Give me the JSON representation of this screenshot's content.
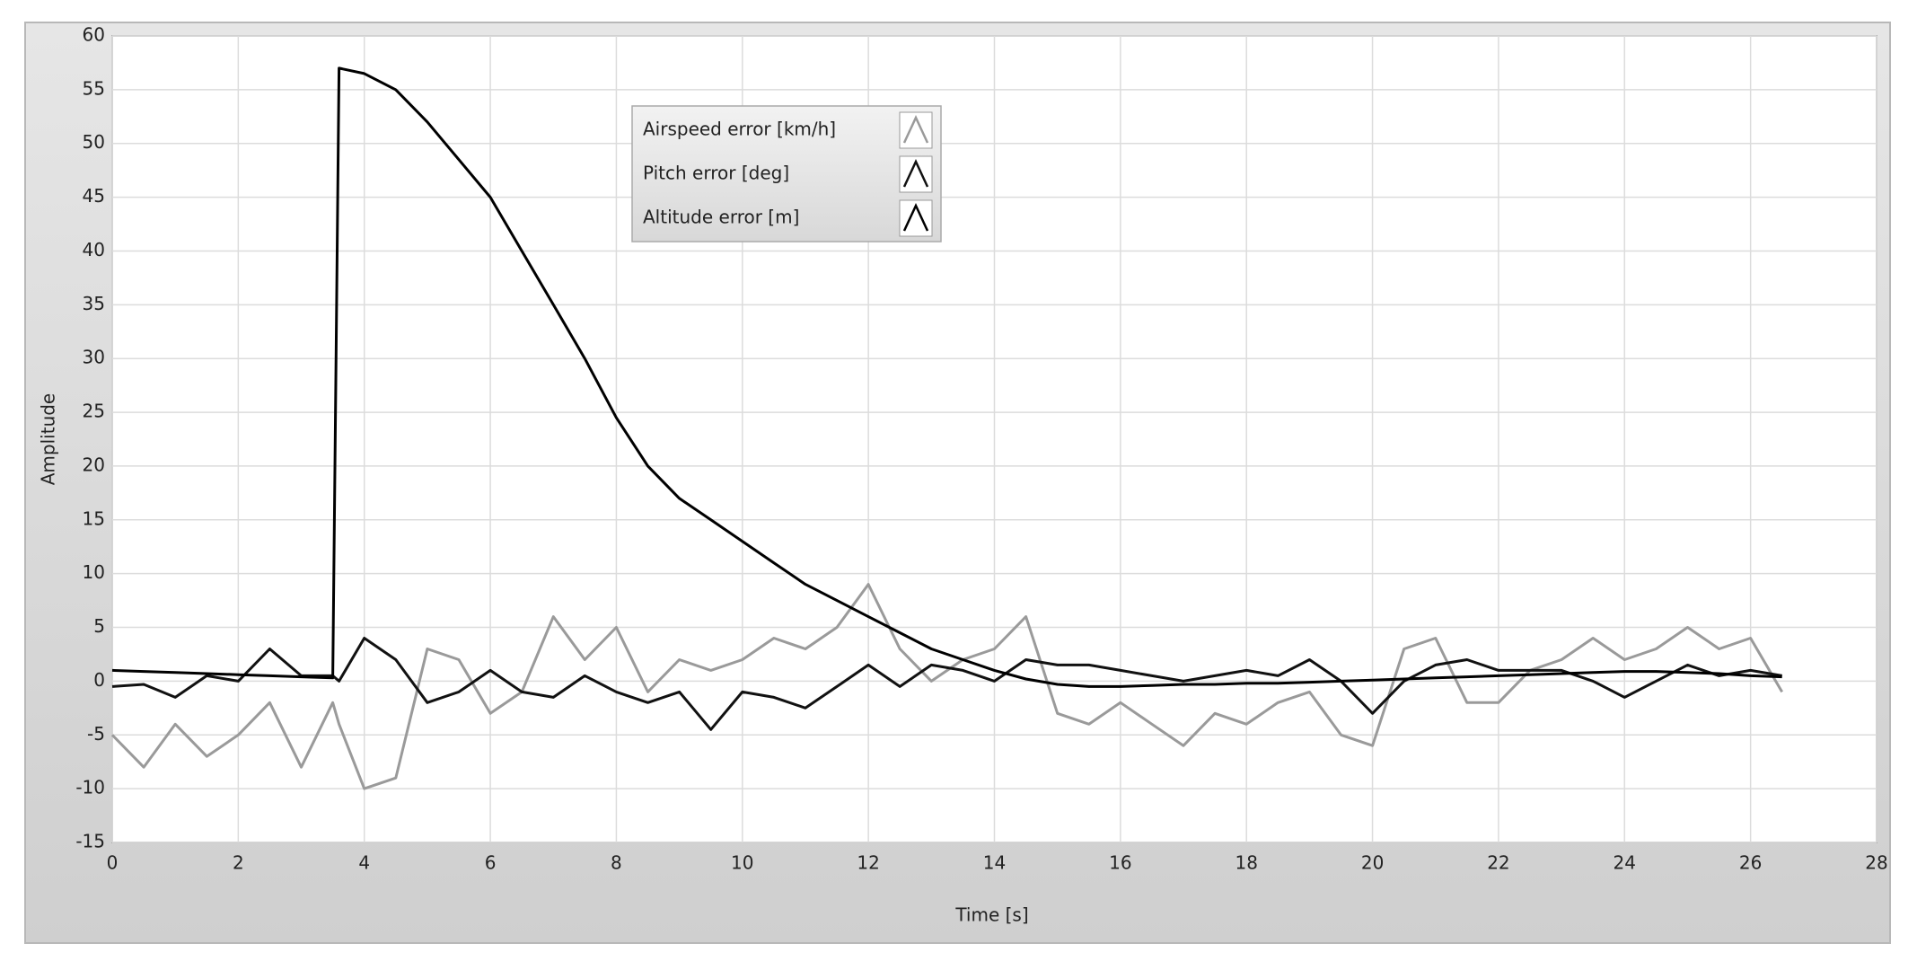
{
  "chart_data": {
    "type": "line",
    "x_label": "Time [s]",
    "y_label": "Amplitude",
    "x": [
      0,
      0.5,
      1,
      1.5,
      2,
      2.5,
      3,
      3.5,
      3.6,
      4,
      4.5,
      5,
      5.5,
      6,
      6.5,
      7,
      7.5,
      8,
      8.5,
      9,
      9.5,
      10,
      10.5,
      11,
      11.5,
      12,
      12.5,
      13,
      13.5,
      14,
      14.5,
      15,
      15.5,
      16,
      16.5,
      17,
      17.5,
      18,
      18.5,
      19,
      19.5,
      20,
      20.5,
      21,
      21.5,
      22,
      22.5,
      23,
      23.5,
      24,
      24.5,
      25,
      25.5,
      26,
      26.5
    ],
    "series": [
      {
        "name": "Airspeed error [km/h]",
        "color": "#9a9a9a",
        "values": [
          -5,
          -8,
          -4,
          -7,
          -5,
          -2,
          -8,
          -2,
          -4,
          -10,
          -9,
          3,
          2,
          -3,
          -1,
          6,
          2,
          5,
          -1,
          2,
          1,
          2,
          4,
          3,
          5,
          9,
          3,
          0,
          2,
          3,
          6,
          -3,
          -4,
          -2,
          -4,
          -6,
          -3,
          -4,
          -2,
          -1,
          -5,
          -6,
          3,
          4,
          -2,
          -2,
          1,
          2,
          4,
          2,
          3,
          5,
          3,
          4,
          -1
        ]
      },
      {
        "name": "Pitch error [deg]",
        "color": "#111111",
        "values": [
          -0.5,
          -0.3,
          -1.5,
          0.5,
          0,
          3,
          0.5,
          0.5,
          0,
          4,
          2,
          -2,
          -1,
          1,
          -1,
          -1.5,
          0.5,
          -1,
          -2,
          -1,
          -4.5,
          -1,
          -1.5,
          -2.5,
          -0.5,
          1.5,
          -0.5,
          1.5,
          1,
          0,
          2,
          1.5,
          1.5,
          1,
          0.5,
          0,
          0.5,
          1,
          0.5,
          2,
          0,
          -3,
          0,
          1.5,
          2,
          1,
          1,
          1,
          0,
          -1.5,
          0,
          1.5,
          0.5,
          1,
          0.5
        ]
      },
      {
        "name": "Altitude error [m]",
        "color": "#000000",
        "values": [
          1.0,
          0.9,
          0.8,
          0.7,
          0.6,
          0.5,
          0.4,
          0.3,
          57,
          56.5,
          55,
          52,
          48.5,
          45,
          40,
          35,
          30,
          24.5,
          20,
          17,
          15,
          13,
          11,
          9,
          7.5,
          6,
          4.5,
          3,
          2,
          1,
          0.2,
          -0.3,
          -0.5,
          -0.5,
          -0.4,
          -0.3,
          -0.3,
          -0.2,
          -0.2,
          -0.1,
          0,
          0.1,
          0.2,
          0.3,
          0.4,
          0.5,
          0.6,
          0.7,
          0.8,
          0.9,
          0.9,
          0.8,
          0.7,
          0.5,
          0.4
        ]
      }
    ],
    "xlim": [
      0,
      28
    ],
    "xticks": [
      0,
      2,
      4,
      6,
      8,
      10,
      12,
      14,
      16,
      18,
      20,
      22,
      24,
      26,
      28
    ],
    "ylim": [
      -15,
      60
    ],
    "yticks": [
      -15,
      -10,
      -5,
      0,
      5,
      10,
      15,
      20,
      25,
      30,
      35,
      40,
      45,
      50,
      55,
      60
    ],
    "grid": true
  }
}
